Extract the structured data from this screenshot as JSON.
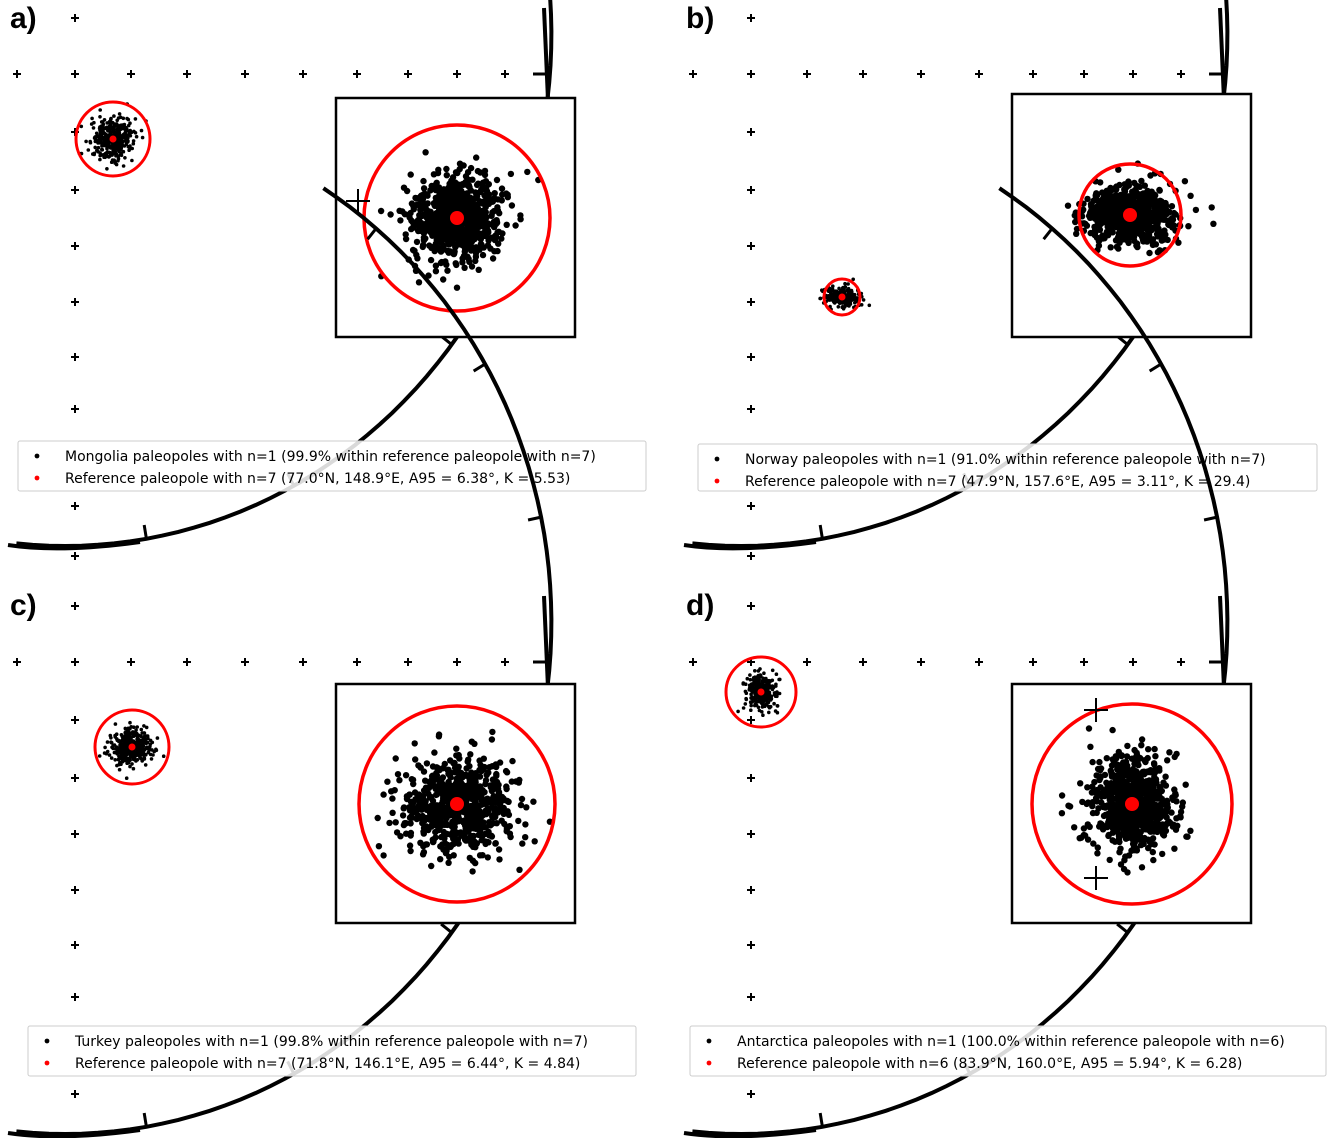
{
  "figure": {
    "colors": {
      "samples": "#000000",
      "reference": "#ff0000",
      "frame": "#000000",
      "legend_border": "#cccccc"
    }
  },
  "chart_data": [
    {
      "type": "scatter",
      "panel_label": "a)",
      "legend": [
        {
          "marker": "black-dot",
          "text": "Mongolia paleopoles with n=1 (99.9% within reference paleopole with n=7)"
        },
        {
          "marker": "red-dot",
          "text": "Reference paleopole with n=7 (77.0°N, 148.9°E, A95 = 6.38°, K = 5.53)"
        }
      ],
      "reference_pole": {
        "lat": 77.0,
        "lon": 148.9,
        "a95": 6.38,
        "k": 5.53,
        "n": 7
      },
      "samples": {
        "n": 1,
        "pct_within": 99.9
      }
    },
    {
      "type": "scatter",
      "panel_label": "b)",
      "legend": [
        {
          "marker": "black-dot",
          "text": "Norway paleopoles with n=1 (91.0% within reference paleopole with n=7)"
        },
        {
          "marker": "red-dot",
          "text": "Reference paleopole with n=7 (47.9°N, 157.6°E, A95 = 3.11°, K = 29.4)"
        }
      ],
      "reference_pole": {
        "lat": 47.9,
        "lon": 157.6,
        "a95": 3.11,
        "k": 29.4,
        "n": 7
      },
      "samples": {
        "n": 1,
        "pct_within": 91.0
      }
    },
    {
      "type": "scatter",
      "panel_label": "c)",
      "legend": [
        {
          "marker": "black-dot",
          "text": "Turkey paleopoles with n=1 (99.8% within reference paleopole with n=7)"
        },
        {
          "marker": "red-dot",
          "text": "Reference paleopole with n=7 (71.8°N, 146.1°E, A95 = 6.44°, K = 4.84)"
        }
      ],
      "reference_pole": {
        "lat": 71.8,
        "lon": 146.1,
        "a95": 6.44,
        "k": 4.84,
        "n": 7
      },
      "samples": {
        "n": 1,
        "pct_within": 99.8
      }
    },
    {
      "type": "scatter",
      "panel_label": "d)",
      "legend": [
        {
          "marker": "black-dot",
          "text": "Antarctica paleopoles with n=1 (100.0% within reference paleopole with n=6)"
        },
        {
          "marker": "red-dot",
          "text": "Reference paleopole with n=6 (83.9°N, 160.0°E, A95 = 5.94°, K = 6.28)"
        }
      ],
      "reference_pole": {
        "lat": 83.9,
        "lon": 160.0,
        "a95": 5.94,
        "k": 6.28,
        "n": 6
      },
      "samples": {
        "n": 1,
        "pct_within": 100.0
      }
    }
  ]
}
